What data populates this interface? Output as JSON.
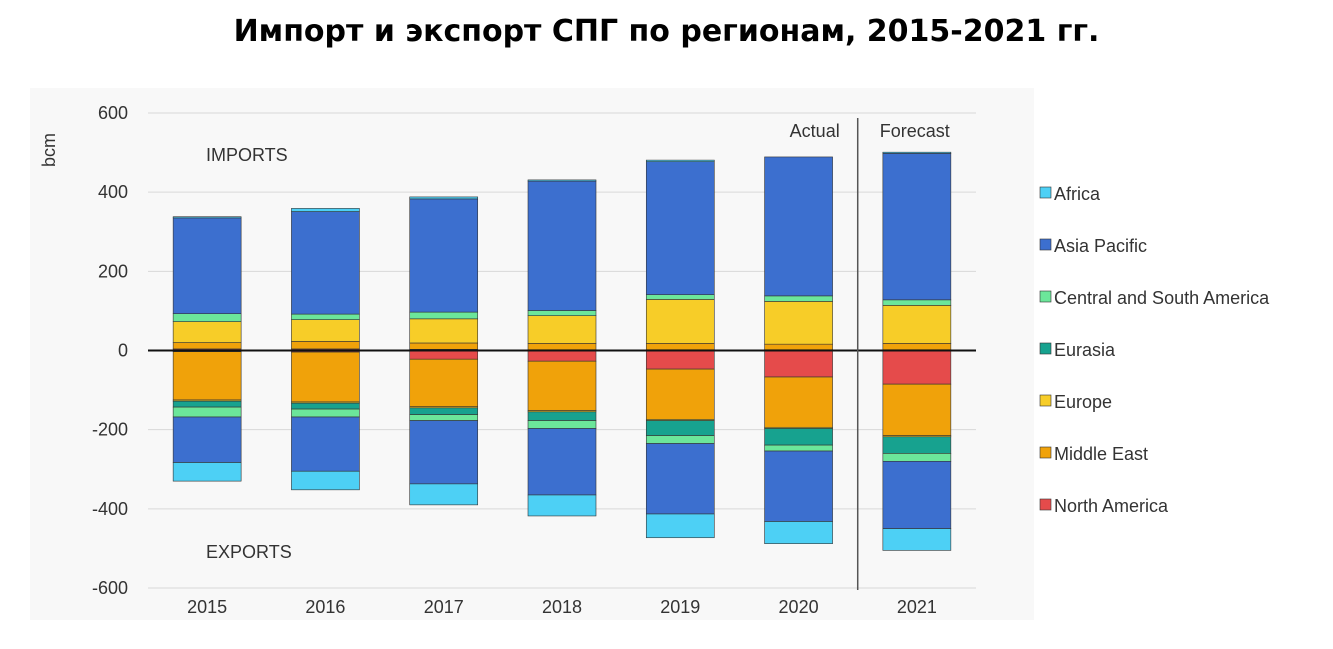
{
  "page": {
    "title": "Импорт и экспорт СПГ по регионам, 2015-2021 гг."
  },
  "chart_data": {
    "type": "bar",
    "stacked": true,
    "title": "Импорт и экспорт СПГ по регионам, 2015-2021 гг.",
    "xlabel": "",
    "ylabel": "bcm",
    "ylim": [
      -600,
      600
    ],
    "yticks": [
      600,
      400,
      200,
      0,
      -200,
      -400,
      -600
    ],
    "categories": [
      "2015",
      "2016",
      "2017",
      "2018",
      "2019",
      "2020",
      "2021"
    ],
    "annotations": {
      "imports": "IMPORTS",
      "exports": "EXPORTS",
      "actual": "Actual",
      "forecast": "Forecast"
    },
    "forecast_from": "2021",
    "legend_position": "right",
    "stack_order": [
      "North America",
      "Middle East",
      "Europe",
      "Eurasia",
      "Central and South America",
      "Asia Pacific",
      "Africa"
    ],
    "series": [
      {
        "name": "Africa",
        "color": "#4dd0f5",
        "imports": [
          3,
          8,
          5,
          3,
          4,
          0,
          3
        ],
        "exports": [
          -47,
          -47,
          -53,
          -53,
          -60,
          -56,
          -55
        ]
      },
      {
        "name": "Asia Pacific",
        "color": "#3c6fcf",
        "imports": [
          242,
          259,
          286,
          327,
          336,
          351,
          370
        ],
        "exports": [
          -115,
          -137,
          -160,
          -168,
          -178,
          -178,
          -170
        ]
      },
      {
        "name": "Central and South America",
        "color": "#6ce69a",
        "imports": [
          20,
          14,
          17,
          13,
          12,
          14,
          14
        ],
        "exports": [
          -25,
          -20,
          -15,
          -20,
          -20,
          -15,
          -20
        ]
      },
      {
        "name": "Eurasia",
        "color": "#17a28f",
        "imports": [
          0,
          0,
          0,
          0,
          0,
          0,
          0
        ],
        "exports": [
          -15,
          -15,
          -17,
          -22,
          -38,
          -42,
          -42
        ]
      },
      {
        "name": "Europe",
        "color": "#f7cd28",
        "imports": [
          53,
          55,
          61,
          70,
          111,
          108,
          96
        ],
        "exports": [
          -3,
          -3,
          -3,
          -3,
          -3,
          -3,
          -3
        ]
      },
      {
        "name": "Middle East",
        "color": "#f0a20a",
        "imports": [
          16,
          19,
          16,
          16,
          16,
          14,
          16
        ],
        "exports": [
          -122,
          -126,
          -120,
          -125,
          -127,
          -127,
          -130
        ]
      },
      {
        "name": "North America",
        "color": "#e54b4b",
        "imports": [
          4,
          4,
          3,
          2,
          2,
          2,
          2
        ],
        "exports": [
          -3,
          -4,
          -22,
          -27,
          -47,
          -67,
          -85
        ]
      }
    ]
  }
}
